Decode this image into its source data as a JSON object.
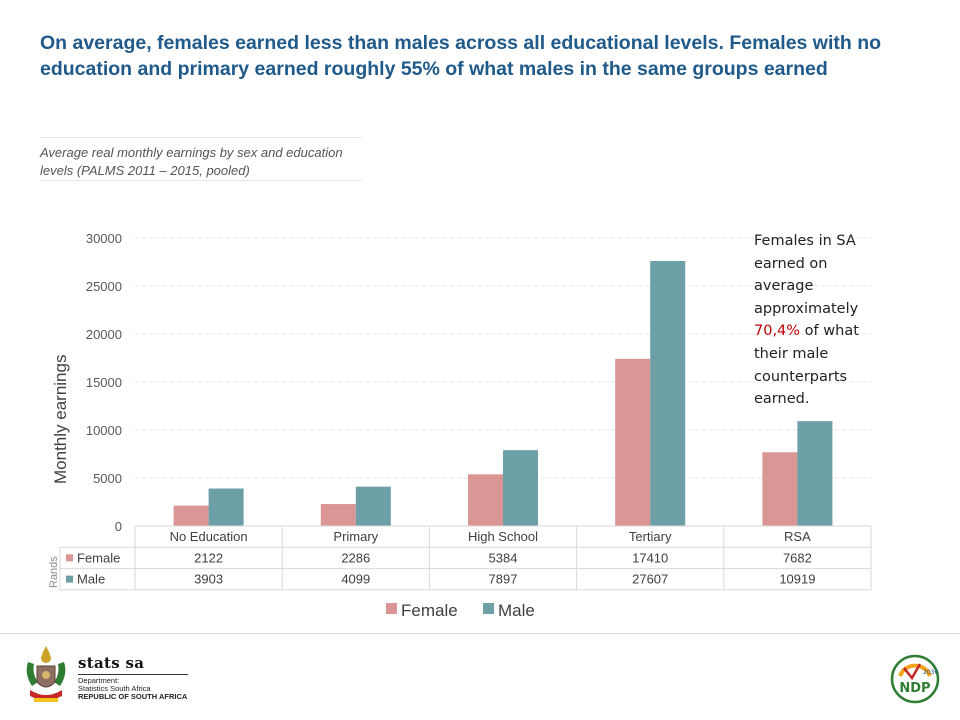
{
  "headline": "On average, females earned less than males across all educational levels. Females with no education and primary  earned roughly 55% of what males in the same groups earned",
  "subtitle": "Average real monthly earnings by sex and education levels (PALMS 2011 – 2015, pooled)",
  "callout": {
    "before": "Females in SA earned on average approximately ",
    "highlight": "70,4%",
    "after": " of what their male counterparts earned."
  },
  "chart_data": {
    "type": "bar",
    "categories": [
      "No Education",
      "Primary",
      "High School",
      "Tertiary",
      "RSA"
    ],
    "series": [
      {
        "name": "Female",
        "values": [
          2122,
          2286,
          5384,
          17410,
          7682
        ],
        "color": "#d99694"
      },
      {
        "name": "Male",
        "values": [
          3903,
          4099,
          7897,
          27607,
          10919
        ],
        "color": "#6c9fa6"
      }
    ],
    "ylabel": "Monthly earnings",
    "table_unit_label": "Rands",
    "ylim": [
      0,
      30000
    ],
    "yticks": [
      0,
      5000,
      10000,
      15000,
      20000,
      25000,
      30000
    ],
    "grid": true,
    "legend": "bottom",
    "data_table": true
  },
  "footer": {
    "brand": "stats sa",
    "dept_line1": "Department:",
    "dept_line2": "Statistics South Africa",
    "dept_line3": "REPUBLIC OF SOUTH AFRICA",
    "ndp_year": "2030",
    "ndp_text": "NDP"
  }
}
